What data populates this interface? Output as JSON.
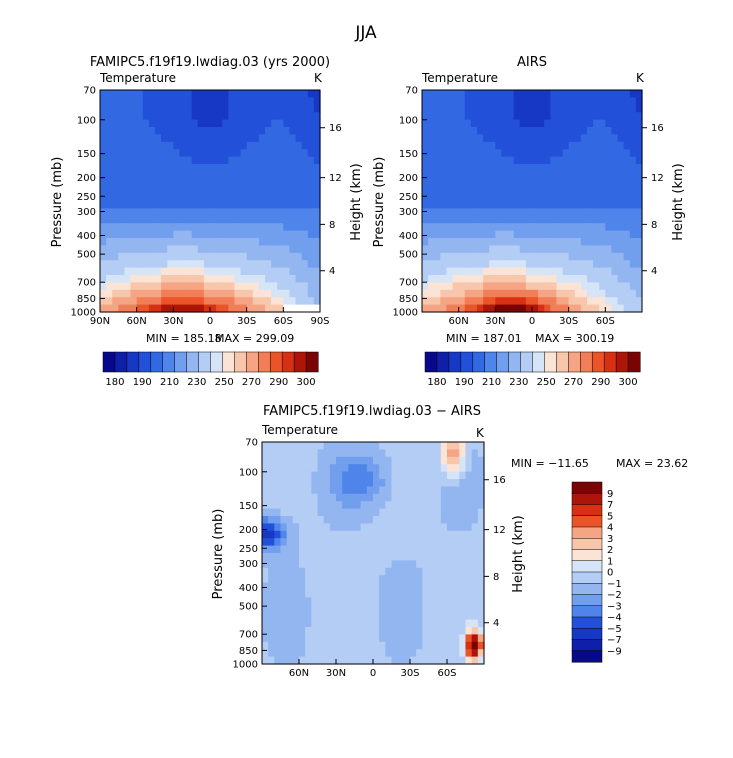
{
  "figure": {
    "season": "JJA",
    "colors": {
      "temp_scale": [
        "#08088a",
        "#0f1fa8",
        "#1738c4",
        "#2250d8",
        "#3268e2",
        "#4f85ea",
        "#719fee",
        "#93b6f0",
        "#b4cdf4",
        "#d6e4f8",
        "#fbe4d6",
        "#f8c6ab",
        "#f5a584",
        "#f17e57",
        "#ea5428",
        "#d73113",
        "#ad1508",
        "#7a0304"
      ],
      "diff_scale": [
        "#08088a",
        "#0f1fa8",
        "#1738c4",
        "#2250d8",
        "#3268e2",
        "#4f85ea",
        "#719fee",
        "#93b6f0",
        "#b4cdf4",
        "#d6e4f8",
        "#fbe4d6",
        "#f8c6ab",
        "#f5a584",
        "#f17e57",
        "#ea5428",
        "#d73113",
        "#ad1508",
        "#7a0304"
      ]
    }
  },
  "chart_data": [
    {
      "id": "model",
      "type": "contour",
      "title": "FAMIPC5.f19f19.lwdiag.03 (yrs 2000)",
      "left_label": "Temperature",
      "right_label": "K",
      "xlabel": "",
      "ylabel": "Pressure (mb)",
      "y2label": "Height (km)",
      "x_ticks": [
        "90N",
        "60N",
        "30N",
        "0",
        "30S",
        "60S",
        "90S"
      ],
      "x_tick_lat": [
        90,
        60,
        30,
        0,
        -30,
        -60,
        -90
      ],
      "y_ticks": [
        "70",
        "100",
        "150",
        "200",
        "250",
        "300",
        "400",
        "500",
        "700",
        "850",
        "1000"
      ],
      "y_tick_p": [
        70,
        100,
        150,
        200,
        250,
        300,
        400,
        500,
        700,
        850,
        1000
      ],
      "y2_ticks": [
        "4",
        "8",
        "12",
        "16"
      ],
      "y2_tick_p": [
        610,
        350,
        200,
        110
      ],
      "min_label": "MIN = 185.18",
      "max_label": "MAX = 299.09",
      "min": 185.18,
      "max": 299.09,
      "lat_range": [
        90,
        -90
      ],
      "cbar_labels": [
        "180",
        "190",
        "210",
        "230",
        "250",
        "270",
        "290",
        "300"
      ]
    },
    {
      "id": "airs",
      "type": "contour",
      "title": "AIRS",
      "left_label": "Temperature",
      "right_label": "K",
      "xlabel": "",
      "ylabel": "Pressure (mb)",
      "y2label": "Height (km)",
      "x_ticks": [
        "60N",
        "30N",
        "0",
        "30S",
        "60S"
      ],
      "x_tick_lat": [
        60,
        30,
        0,
        -30,
        -60
      ],
      "y_ticks": [
        "70",
        "100",
        "150",
        "200",
        "250",
        "300",
        "400",
        "500",
        "700",
        "850",
        "1000"
      ],
      "y_tick_p": [
        70,
        100,
        150,
        200,
        250,
        300,
        400,
        500,
        700,
        850,
        1000
      ],
      "y2_ticks": [
        "4",
        "8",
        "12",
        "16"
      ],
      "y2_tick_p": [
        610,
        350,
        200,
        110
      ],
      "min_label": "MIN = 187.01",
      "max_label": "MAX = 300.19",
      "min": 187.01,
      "max": 300.19,
      "lat_range": [
        90,
        -90
      ],
      "cbar_labels": [
        "180",
        "190",
        "210",
        "230",
        "250",
        "270",
        "290",
        "300"
      ]
    },
    {
      "id": "diff",
      "type": "contour",
      "title": "FAMIPC5.f19f19.lwdiag.03 − AIRS",
      "left_label": "Temperature",
      "right_label": "K",
      "xlabel": "",
      "ylabel": "Pressure (mb)",
      "y2label": "Height (km)",
      "x_ticks": [
        "60N",
        "30N",
        "0",
        "30S",
        "60S"
      ],
      "x_tick_lat": [
        60,
        30,
        0,
        -30,
        -60
      ],
      "y_ticks": [
        "70",
        "100",
        "150",
        "200",
        "250",
        "300",
        "400",
        "500",
        "700",
        "850",
        "1000"
      ],
      "y_tick_p": [
        70,
        100,
        150,
        200,
        250,
        300,
        400,
        500,
        700,
        850,
        1000
      ],
      "y2_ticks": [
        "4",
        "8",
        "12",
        "16"
      ],
      "y2_tick_p": [
        610,
        350,
        200,
        110
      ],
      "min_label": "MIN = −11.65",
      "max_label": "MAX =  23.62",
      "min": -11.65,
      "max": 23.62,
      "lat_range": [
        90,
        -90
      ],
      "cbar_labels": [
        "9",
        "7",
        "5",
        "4",
        "3",
        "2",
        "1",
        "0",
        "−1",
        "−2",
        "−3",
        "−4",
        "−5",
        "−7",
        "−9"
      ]
    }
  ]
}
